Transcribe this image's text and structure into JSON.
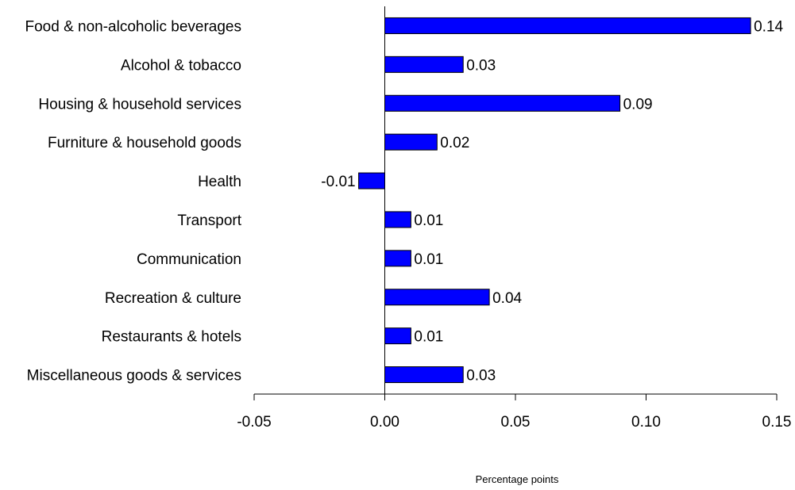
{
  "chart_data": {
    "type": "bar",
    "orientation": "horizontal",
    "categories": [
      "Food & non-alcoholic beverages",
      "Alcohol & tobacco",
      "Housing & household services",
      "Furniture & household goods",
      "Health",
      "Transport",
      "Communication",
      "Recreation & culture",
      "Restaurants & hotels",
      "Miscellaneous goods & services"
    ],
    "values": [
      0.14,
      0.03,
      0.09,
      0.02,
      -0.01,
      0.01,
      0.01,
      0.04,
      0.01,
      0.03
    ],
    "value_labels": [
      "0.14",
      "0.03",
      "0.09",
      "0.02",
      "-0.01",
      "0.01",
      "0.01",
      "0.04",
      "0.01",
      "0.03"
    ],
    "xticks": [
      "-0.05",
      "0.00",
      "0.05",
      "0.10",
      "0.15"
    ],
    "xtick_values": [
      -0.05,
      0,
      0.05,
      0.1,
      0.15
    ],
    "xlim": [
      -0.05,
      0.15
    ],
    "xlabel": "Percentage points",
    "title": "",
    "ylabel": "",
    "grid": false,
    "legend": "none",
    "bar_color": "#0000FF",
    "bar_edge_color": "#000000"
  }
}
